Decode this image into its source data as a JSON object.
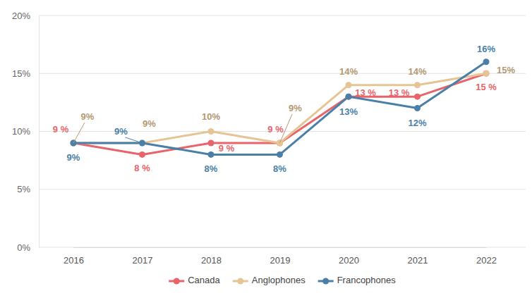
{
  "chart_data": {
    "type": "line",
    "categories": [
      "2016",
      "2017",
      "2018",
      "2019",
      "2020",
      "2021",
      "2022"
    ],
    "series": [
      {
        "name": "Canada",
        "color": "#e8646a",
        "values": [
          9,
          8,
          9,
          9,
          13,
          13,
          15
        ],
        "value_labels": [
          "9 %",
          "8 %",
          "9 %",
          "9 %",
          "13 %",
          "13 %",
          "15 %"
        ]
      },
      {
        "name": "Anglophones",
        "color": "#e6c494",
        "values": [
          9,
          9,
          10,
          9,
          14,
          14,
          15
        ],
        "value_labels": [
          "9%",
          "9%",
          "10%",
          "9%",
          "14%",
          "14%",
          "15%"
        ]
      },
      {
        "name": "Francophones",
        "color": "#4a7fa7",
        "values": [
          9,
          9,
          8,
          8,
          13,
          12,
          16
        ],
        "value_labels": [
          "9%",
          "9%",
          "8%",
          "8%",
          "13%",
          "12%",
          "16%"
        ]
      }
    ],
    "ylim": [
      0,
      20
    ],
    "yticks": [
      {
        "value": 0,
        "label": "0%"
      },
      {
        "value": 5,
        "label": "5%"
      },
      {
        "value": 10,
        "label": "10%"
      },
      {
        "value": 15,
        "label": "15%"
      },
      {
        "value": 20,
        "label": "20%"
      }
    ],
    "grid": true,
    "legend": "bottom",
    "data_labels": true,
    "marker": "circle"
  }
}
